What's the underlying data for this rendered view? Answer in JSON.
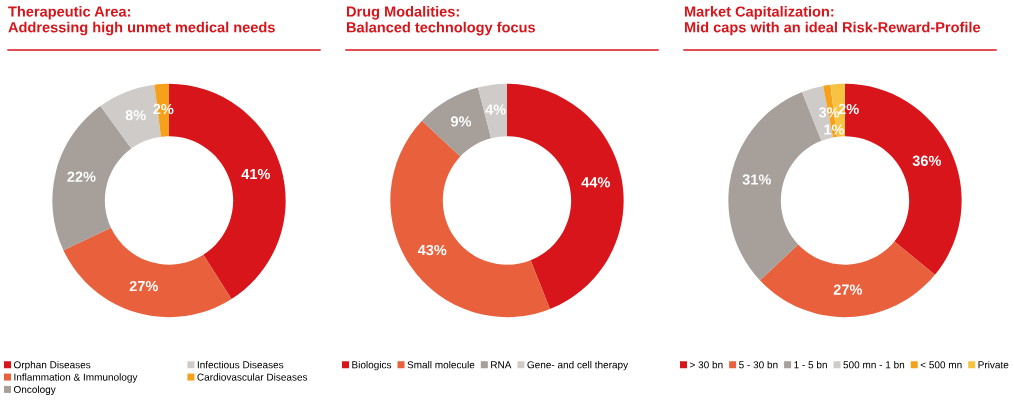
{
  "chart_data": [
    {
      "type": "donut",
      "title": "Therapeutic Area:\nAddressing high unmet medical needs",
      "categories": [
        "Orphan Diseases",
        "Inflammation & Immunology",
        "Oncology",
        "Infectious Diseases",
        "Cardiovascular Diseases"
      ],
      "values": [
        41,
        27,
        22,
        8,
        2
      ],
      "value_labels": [
        "41%",
        "27%",
        "22%",
        "8%",
        "2%"
      ],
      "colors": [
        "#d7151b",
        "#e8603c",
        "#a69f9a",
        "#cfcbc8",
        "#f5a11c"
      ],
      "data_labels": true,
      "legend": "bottom"
    },
    {
      "type": "donut",
      "title": "Drug Modalities:\nBalanced technology focus",
      "categories": [
        "Biologics",
        "Small molecule",
        "RNA",
        "Gene- and cell therapy"
      ],
      "values": [
        44,
        43,
        9,
        4
      ],
      "value_labels": [
        "44%",
        "43%",
        "9%",
        "4%"
      ],
      "colors": [
        "#d7151b",
        "#e8603c",
        "#a69f9a",
        "#cfcbc8"
      ],
      "data_labels": true,
      "legend": "bottom"
    },
    {
      "type": "donut",
      "title": "Market Capitalization:\nMid caps with an ideal Risk-Reward-Profile",
      "categories": [
        "> 30 bn",
        "5 - 30 bn",
        "1 - 5 bn",
        "500 mn - 1 bn",
        "< 500 mn",
        "Private"
      ],
      "values": [
        36,
        27,
        31,
        3,
        1,
        2
      ],
      "value_labels": [
        "36%",
        "27%",
        "31%",
        "3%",
        "1%",
        "2%"
      ],
      "colors": [
        "#d7151b",
        "#e8603c",
        "#a69f9a",
        "#cfcbc8",
        "#f5a11c",
        "#f6c342"
      ],
      "data_labels": true,
      "legend": "bottom"
    }
  ]
}
